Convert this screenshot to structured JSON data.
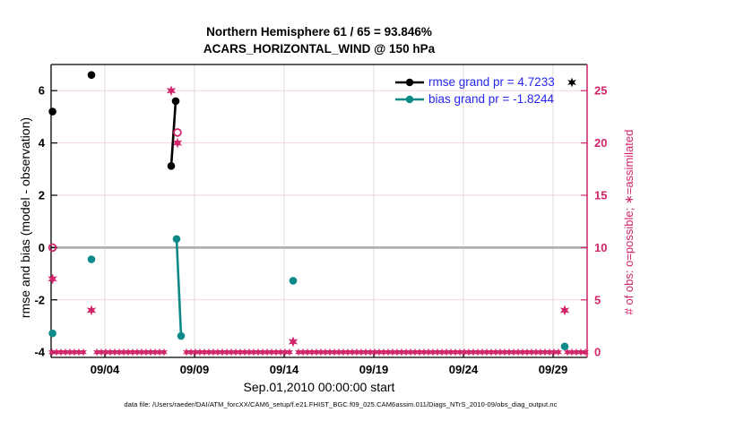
{
  "title_line1": "Northern Hemisphere 61 / 65 = 93.846%",
  "title_line2": "ACARS_HORIZONTAL_WIND @ 150 hPa",
  "left_axis": {
    "label": "rmse and bias (model - observation)",
    "tick_labels": [
      "6",
      "4",
      "2",
      "0",
      "-2",
      "-4"
    ],
    "tick_values": [
      6,
      4,
      2,
      0,
      -2,
      -4
    ]
  },
  "right_axis": {
    "label": "# of obs: o=possible; ∗=assimilated",
    "tick_labels": [
      "25",
      "20",
      "15",
      "10",
      "5",
      "0"
    ],
    "tick_values": [
      25,
      20,
      15,
      10,
      5,
      0
    ]
  },
  "x_axis": {
    "label": "Sep.01,2010 00:00:00 start",
    "tick_labels": [
      "09/04",
      "09/09",
      "09/14",
      "09/19",
      "09/24",
      "09/29"
    ],
    "tick_days": [
      3,
      8,
      13,
      18,
      23,
      28
    ]
  },
  "legend": {
    "items": [
      {
        "series": "rmse",
        "label": "rmse grand pr = 4.7233"
      },
      {
        "series": "bias",
        "label": "bias grand pr = -1.8244"
      }
    ]
  },
  "caption": "data file: /Users/raeder/DAI/ATM_forcXX/CAM6_setup/f.e21.FHIST_BGC.f09_025.CAM6assim.011/Diags_NTrS_2010-09/obs_diag_output.nc",
  "colors": {
    "rmse": "#000000",
    "bias": "#0e8989",
    "obs": "#d2246a",
    "legend_text": "#2525f0",
    "zero_line": "#a8a8a8",
    "grid_h": "#f5d3e0",
    "grid_v": "#dcdcdc",
    "spine": "#000000"
  },
  "chart_data": {
    "type": "line",
    "title": "Northern Hemisphere 61 / 65 = 93.846% | ACARS_HORIZONTAL_WIND @ 150 hPa",
    "x_unit": "days since Sep 01, 2010 00:00:00",
    "xlim": [
      0,
      29.9
    ],
    "ylim_left": [
      -4.2,
      7.0
    ],
    "ylim_right": [
      -0.5,
      27.5
    ],
    "right_from_left": "count = (value + 4) * 2.5",
    "grand_stats": {
      "rmse_grand_pr": 4.7233,
      "bias_grand_pr": -1.8244
    },
    "series": [
      {
        "name": "rmse",
        "axis": "left",
        "color_key": "rmse",
        "marker": "dot",
        "segments": [
          [
            [
              0.08,
              5.2
            ]
          ],
          [
            [
              2.25,
              6.6
            ]
          ],
          [
            [
              6.7,
              3.12
            ],
            [
              6.95,
              5.6
            ]
          ]
        ]
      },
      {
        "name": "bias",
        "axis": "left",
        "color_key": "bias",
        "marker": "dot",
        "segments": [
          [
            [
              0.08,
              -3.28
            ]
          ],
          [
            [
              2.25,
              -0.45
            ]
          ],
          [
            [
              7.0,
              0.33
            ],
            [
              7.25,
              -3.38
            ]
          ],
          [
            [
              13.5,
              -1.27
            ]
          ],
          [
            [
              28.65,
              -3.78
            ]
          ]
        ]
      },
      {
        "name": "possible",
        "axis": "right",
        "color_key": "obs",
        "marker": "open-circle",
        "points": [
          [
            0.08,
            10
          ],
          [
            7.05,
            21
          ]
        ]
      },
      {
        "name": "assimilated",
        "axis": "right",
        "color_key": "obs",
        "marker": "star",
        "points": [
          [
            0.08,
            7
          ],
          [
            2.25,
            4
          ],
          [
            6.7,
            25
          ],
          [
            7.05,
            20
          ],
          [
            13.5,
            1
          ],
          [
            28.65,
            4
          ]
        ]
      }
    ],
    "zero_count_row": {
      "axis": "right",
      "value": 0,
      "start_day": 0.05,
      "end_day": 29.85,
      "step_day": 0.25,
      "gap_ranges": [
        [
          1.95,
          2.55
        ],
        [
          6.45,
          7.55
        ],
        [
          13.35,
          13.7
        ],
        [
          28.45,
          28.75
        ]
      ]
    }
  }
}
